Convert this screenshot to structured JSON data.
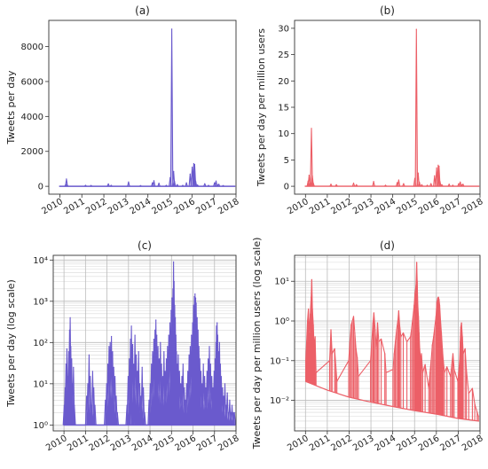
{
  "chart_data": [
    {
      "id": "a",
      "type": "line",
      "title": "(a)",
      "ylabel": "Tweets per day",
      "xlabel": "",
      "x_ticks": [
        "2010",
        "2011",
        "2012",
        "2013",
        "2014",
        "2015",
        "2016",
        "2017",
        "2018"
      ],
      "y_ticks": [
        "0",
        "2000",
        "4000",
        "6000",
        "8000"
      ],
      "y_tick_values": [
        0,
        2000,
        4000,
        6000,
        8000
      ],
      "xlim": [
        "2009-07-01",
        "2018-01-01"
      ],
      "ylim": [
        -450,
        9500
      ],
      "yscale": "linear",
      "grid": false,
      "color": "#6a5acd",
      "baseline": 0,
      "series": [
        {
          "x": [
            "2010-04-10",
            "2010-04-20",
            "2010-05-01",
            "2011-03-01",
            "2011-06-01",
            "2012-03-15",
            "2012-05-01",
            "2013-02-15",
            "2013-09-01",
            "2014-03-15",
            "2014-04-10",
            "2014-07-01",
            "2014-11-01",
            "2015-01-05",
            "2015-02-01",
            "2015-03-01",
            "2015-03-15",
            "2015-05-01",
            "2015-08-01",
            "2015-10-01",
            "2015-12-01",
            "2016-01-05",
            "2016-02-01",
            "2016-02-15",
            "2016-03-01",
            "2016-04-01",
            "2016-08-01",
            "2016-10-01",
            "2017-01-10",
            "2017-02-05",
            "2017-02-25",
            "2017-03-20",
            "2017-06-01"
          ],
          "y": [
            120,
            420,
            80,
            60,
            50,
            140,
            60,
            250,
            40,
            200,
            320,
            180,
            60,
            500,
            9000,
            850,
            300,
            100,
            60,
            200,
            700,
            1100,
            1300,
            1250,
            300,
            80,
            150,
            60,
            200,
            300,
            100,
            120,
            40
          ]
        }
      ]
    },
    {
      "id": "b",
      "type": "line",
      "title": "(b)",
      "ylabel": "Tweets per day per million users",
      "xlabel": "",
      "x_ticks": [
        "2010",
        "2011",
        "2012",
        "2013",
        "2014",
        "2015",
        "2016",
        "2017",
        "2018"
      ],
      "y_ticks": [
        "0",
        "5",
        "10",
        "15",
        "20",
        "25",
        "30"
      ],
      "y_tick_values": [
        0,
        5,
        10,
        15,
        20,
        25,
        30
      ],
      "xlim": [
        "2009-07-01",
        "2018-01-01"
      ],
      "ylim": [
        -1.5,
        31.5
      ],
      "yscale": "linear",
      "grid": false,
      "color": "#ec5f67",
      "baseline": 0,
      "series": [
        {
          "x": [
            "2010-02-15",
            "2010-03-01",
            "2010-03-20",
            "2010-04-10",
            "2010-04-25",
            "2010-05-10",
            "2011-03-01",
            "2011-06-01",
            "2012-03-15",
            "2012-05-01",
            "2013-02-15",
            "2013-09-01",
            "2014-03-15",
            "2014-04-10",
            "2014-07-01",
            "2015-01-05",
            "2015-02-01",
            "2015-03-01",
            "2015-03-20",
            "2015-05-01",
            "2015-08-01",
            "2015-10-01",
            "2015-12-01",
            "2016-01-05",
            "2016-02-01",
            "2016-02-15",
            "2016-03-01",
            "2016-04-01",
            "2016-08-01",
            "2016-10-01",
            "2017-01-10",
            "2017-02-05",
            "2017-02-25",
            "2017-03-20"
          ],
          "y": [
            1.0,
            2.1,
            1.0,
            11.0,
            2.0,
            0.6,
            0.4,
            0.3,
            0.6,
            0.3,
            0.9,
            0.2,
            0.7,
            1.2,
            0.5,
            1.5,
            29.8,
            2.5,
            0.8,
            0.3,
            0.2,
            0.5,
            2.0,
            3.5,
            4.0,
            3.8,
            0.9,
            0.3,
            0.4,
            0.2,
            0.5,
            0.8,
            0.3,
            0.4
          ]
        }
      ]
    },
    {
      "id": "c",
      "type": "line",
      "title": "(c)",
      "ylabel": "Tweets per day (log scale)",
      "xlabel": "",
      "x_ticks": [
        "2010",
        "2011",
        "2012",
        "2013",
        "2014",
        "2015",
        "2016",
        "2017",
        "2018"
      ],
      "y_ticks": [
        "10⁰",
        "10¹",
        "10²",
        "10³",
        "10⁴"
      ],
      "y_tick_values": [
        1,
        10,
        100,
        1000,
        10000
      ],
      "xlim": [
        "2009-07-01",
        "2018-01-01"
      ],
      "ylim": [
        0.72,
        13000
      ],
      "yscale": "log",
      "grid": true,
      "color": "#6a5acd",
      "baseline": 1,
      "series": [
        {
          "x": [
            "2010-01-05",
            "2010-01-20",
            "2010-02-05",
            "2010-02-20",
            "2010-03-05",
            "2010-03-20",
            "2010-04-05",
            "2010-04-15",
            "2010-04-25",
            "2010-05-10",
            "2010-05-25",
            "2010-06-10",
            "2010-06-25",
            "2010-07-10",
            "2011-01-20",
            "2011-02-10",
            "2011-03-01",
            "2011-03-20",
            "2011-04-10",
            "2011-05-01",
            "2011-05-20",
            "2011-06-10",
            "2011-07-01",
            "2011-12-05",
            "2011-12-25",
            "2012-01-15",
            "2012-02-05",
            "2012-02-25",
            "2012-03-15",
            "2012-04-05",
            "2012-04-25",
            "2012-05-15",
            "2012-06-05",
            "2012-06-25",
            "2012-12-05",
            "2012-12-25",
            "2013-01-15",
            "2013-02-05",
            "2013-02-20",
            "2013-03-10",
            "2013-04-01",
            "2013-04-20",
            "2013-05-10",
            "2013-06-01",
            "2013-06-20",
            "2013-07-10",
            "2013-08-01",
            "2013-08-20",
            "2013-09-10",
            "2013-10-01",
            "2013-12-15",
            "2014-01-05",
            "2014-01-25",
            "2014-02-15",
            "2014-03-05",
            "2014-03-25",
            "2014-04-10",
            "2014-04-25",
            "2014-05-15",
            "2014-06-05",
            "2014-06-25",
            "2014-07-15",
            "2014-08-05",
            "2014-08-25",
            "2014-09-15",
            "2014-10-05",
            "2014-10-25",
            "2014-11-15",
            "2014-12-05",
            "2014-12-25",
            "2015-01-10",
            "2015-01-25",
            "2015-02-05",
            "2015-02-15",
            "2015-02-25",
            "2015-03-05",
            "2015-03-15",
            "2015-03-25",
            "2015-04-10",
            "2015-04-25",
            "2015-05-15",
            "2015-06-05",
            "2015-06-25",
            "2015-07-15",
            "2015-08-05",
            "2015-08-25",
            "2015-09-15",
            "2015-10-05",
            "2015-10-25",
            "2015-11-15",
            "2015-12-05",
            "2015-12-25",
            "2016-01-10",
            "2016-01-25",
            "2016-02-05",
            "2016-02-15",
            "2016-02-25",
            "2016-03-10",
            "2016-03-25",
            "2016-04-10",
            "2016-04-25",
            "2016-05-15",
            "2016-06-05",
            "2016-06-25",
            "2016-07-15",
            "2016-08-05",
            "2016-08-25",
            "2016-09-15",
            "2016-10-05",
            "2016-10-25",
            "2016-11-15",
            "2016-12-05",
            "2016-12-25",
            "2017-01-10",
            "2017-01-25",
            "2017-02-05",
            "2017-02-15",
            "2017-02-25",
            "2017-03-10",
            "2017-03-25",
            "2017-04-10",
            "2017-04-25",
            "2017-05-15",
            "2017-06-05",
            "2017-06-25",
            "2017-07-15",
            "2017-08-05",
            "2017-08-25",
            "2017-09-15",
            "2017-10-05",
            "2017-10-25",
            "2017-11-15",
            "2017-12-05"
          ],
          "y": [
            3,
            8,
            30,
            70,
            15,
            60,
            200,
            400,
            80,
            40,
            10,
            25,
            3,
            1,
            5,
            10,
            50,
            15,
            3,
            20,
            8,
            3,
            1,
            4,
            10,
            30,
            80,
            100,
            140,
            60,
            25,
            15,
            5,
            2,
            3,
            15,
            40,
            120,
            250,
            90,
            30,
            150,
            50,
            20,
            60,
            10,
            5,
            25,
            8,
            2,
            4,
            10,
            30,
            60,
            120,
            200,
            350,
            150,
            80,
            40,
            100,
            30,
            15,
            60,
            20,
            40,
            80,
            150,
            300,
            600,
            1200,
            2000,
            9000,
            3000,
            800,
            400,
            150,
            60,
            30,
            50,
            20,
            10,
            15,
            30,
            8,
            4,
            10,
            20,
            50,
            80,
            150,
            300,
            800,
            1300,
            1500,
            1200,
            900,
            400,
            200,
            80,
            40,
            20,
            10,
            30,
            15,
            8,
            20,
            40,
            80,
            30,
            15,
            8,
            20,
            40,
            100,
            250,
            300,
            150,
            60,
            100,
            30,
            15,
            8,
            5,
            10,
            3,
            6,
            2,
            4,
            2,
            3,
            2,
            2
          ]
        }
      ]
    },
    {
      "id": "d",
      "type": "line",
      "title": "(d)",
      "ylabel": "Tweets per day per million users (log scale)",
      "xlabel": "",
      "x_ticks": [
        "2010",
        "2011",
        "2012",
        "2013",
        "2014",
        "2015",
        "2016",
        "2017",
        "2018"
      ],
      "y_ticks": [
        "10⁻²",
        "10⁻¹",
        "10⁰",
        "10¹"
      ],
      "y_tick_values": [
        0.01,
        0.1,
        1,
        10
      ],
      "xlim": [
        "2009-07-01",
        "2018-01-01"
      ],
      "ylim": [
        0.0017,
        45
      ],
      "yscale": "log",
      "grid": true,
      "color": "#ec5f67",
      "baseline": "per-day floor (1 tweet)",
      "floor": [
        {
          "x": "2010-01-01",
          "y": 0.03
        },
        {
          "x": "2011-01-01",
          "y": 0.018
        },
        {
          "x": "2012-01-01",
          "y": 0.012
        },
        {
          "x": "2013-01-01",
          "y": 0.009
        },
        {
          "x": "2014-01-01",
          "y": 0.007
        },
        {
          "x": "2015-01-01",
          "y": 0.0055
        },
        {
          "x": "2016-01-01",
          "y": 0.0045
        },
        {
          "x": "2017-01-01",
          "y": 0.0035
        },
        {
          "x": "2017-12-15",
          "y": 0.003
        }
      ],
      "series": [
        {
          "x": [
            "2010-01-05",
            "2010-01-20",
            "2010-02-05",
            "2010-02-20",
            "2010-03-05",
            "2010-03-20",
            "2010-04-05",
            "2010-04-15",
            "2010-04-25",
            "2010-05-10",
            "2010-05-25",
            "2010-06-10",
            "2010-06-25",
            "2011-02-10",
            "2011-03-01",
            "2011-03-20",
            "2011-05-01",
            "2011-05-20",
            "2011-06-10",
            "2011-12-25",
            "2012-01-15",
            "2012-02-05",
            "2012-02-25",
            "2012-03-15",
            "2012-04-05",
            "2012-04-25",
            "2012-05-15",
            "2012-06-05",
            "2012-12-25",
            "2013-01-15",
            "2013-02-05",
            "2013-02-20",
            "2013-03-10",
            "2013-04-01",
            "2013-04-20",
            "2013-05-10",
            "2013-06-20",
            "2013-08-20",
            "2013-09-10",
            "2014-01-05",
            "2014-01-25",
            "2014-02-15",
            "2014-03-05",
            "2014-03-25",
            "2014-04-10",
            "2014-04-25",
            "2014-05-15",
            "2014-06-25",
            "2014-08-25",
            "2014-10-25",
            "2014-11-15",
            "2014-12-05",
            "2014-12-25",
            "2015-01-10",
            "2015-01-25",
            "2015-02-05",
            "2015-02-15",
            "2015-02-25",
            "2015-03-05",
            "2015-03-15",
            "2015-03-25",
            "2015-04-10",
            "2015-04-25",
            "2015-05-15",
            "2015-06-25",
            "2015-08-25",
            "2015-09-15",
            "2015-10-05",
            "2015-10-25",
            "2015-11-15",
            "2015-12-05",
            "2015-12-25",
            "2016-01-10",
            "2016-01-25",
            "2016-02-05",
            "2016-02-15",
            "2016-02-25",
            "2016-03-10",
            "2016-03-25",
            "2016-04-10",
            "2016-04-25",
            "2016-05-15",
            "2016-06-25",
            "2016-08-25",
            "2016-09-15",
            "2016-10-05",
            "2016-10-25",
            "2016-12-25",
            "2017-01-10",
            "2017-01-25",
            "2017-02-05",
            "2017-02-15",
            "2017-02-25",
            "2017-03-10",
            "2017-03-25",
            "2017-04-25",
            "2017-05-15",
            "2017-06-25",
            "2017-08-25",
            "2017-10-05",
            "2017-11-15",
            "2017-12-05"
          ],
          "y": [
            0.1,
            0.3,
            1.0,
            2.0,
            0.5,
            1.5,
            4.0,
            11.0,
            2.0,
            0.8,
            0.2,
            0.4,
            0.05,
            0.1,
            0.6,
            0.15,
            0.2,
            0.08,
            0.03,
            0.1,
            0.3,
            0.8,
            1.0,
            1.3,
            0.5,
            0.2,
            0.12,
            0.04,
            0.1,
            0.3,
            0.9,
            1.6,
            0.6,
            0.2,
            0.9,
            0.3,
            0.35,
            0.15,
            0.05,
            0.06,
            0.15,
            0.3,
            0.6,
            1.0,
            1.8,
            0.8,
            0.4,
            0.5,
            0.3,
            0.4,
            0.7,
            1.3,
            2.5,
            5.0,
            8.0,
            30.0,
            10.0,
            2.5,
            1.3,
            0.5,
            0.2,
            0.1,
            0.15,
            0.05,
            0.08,
            0.02,
            0.05,
            0.1,
            0.25,
            0.4,
            0.7,
            1.3,
            3.0,
            3.8,
            4.0,
            3.5,
            2.5,
            1.0,
            0.5,
            0.2,
            0.1,
            0.05,
            0.07,
            0.04,
            0.08,
            0.15,
            0.06,
            0.03,
            0.05,
            0.1,
            0.3,
            0.7,
            0.9,
            0.4,
            0.15,
            0.2,
            0.06,
            0.015,
            0.02,
            0.008,
            0.005,
            0.004
          ]
        }
      ]
    }
  ]
}
